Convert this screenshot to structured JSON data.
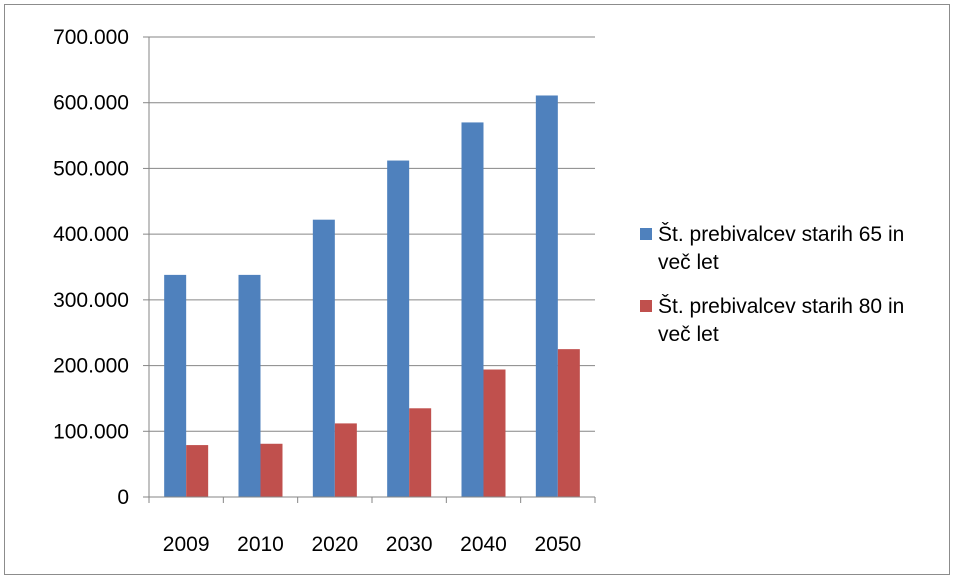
{
  "chart_data": {
    "type": "bar",
    "categories": [
      "2009",
      "2010",
      "2020",
      "2030",
      "2040",
      "2050"
    ],
    "series": [
      {
        "name": "Št. prebivalcev starih 65 in več let",
        "name_lines": [
          "Št. prebivalcev starih 65 in",
          "več let"
        ],
        "color": "#4f81bd",
        "values": [
          338000,
          338000,
          422000,
          512000,
          570000,
          611000
        ]
      },
      {
        "name": "Št. prebivalcev starih 80 in več let",
        "name_lines": [
          "Št. prebivalcev starih 80 in",
          "več let"
        ],
        "color": "#c0504d",
        "values": [
          79000,
          81000,
          112000,
          135000,
          194000,
          225000
        ]
      }
    ],
    "ylim": [
      0,
      700000
    ],
    "yticks": [
      0,
      100000,
      200000,
      300000,
      400000,
      500000,
      600000,
      700000
    ],
    "ytick_labels": [
      "0",
      "100.000",
      "200.000",
      "300.000",
      "400.000",
      "500.000",
      "600.000",
      "700.000"
    ],
    "grid": true,
    "legend_position": "right",
    "title": "",
    "xlabel": "",
    "ylabel": ""
  }
}
